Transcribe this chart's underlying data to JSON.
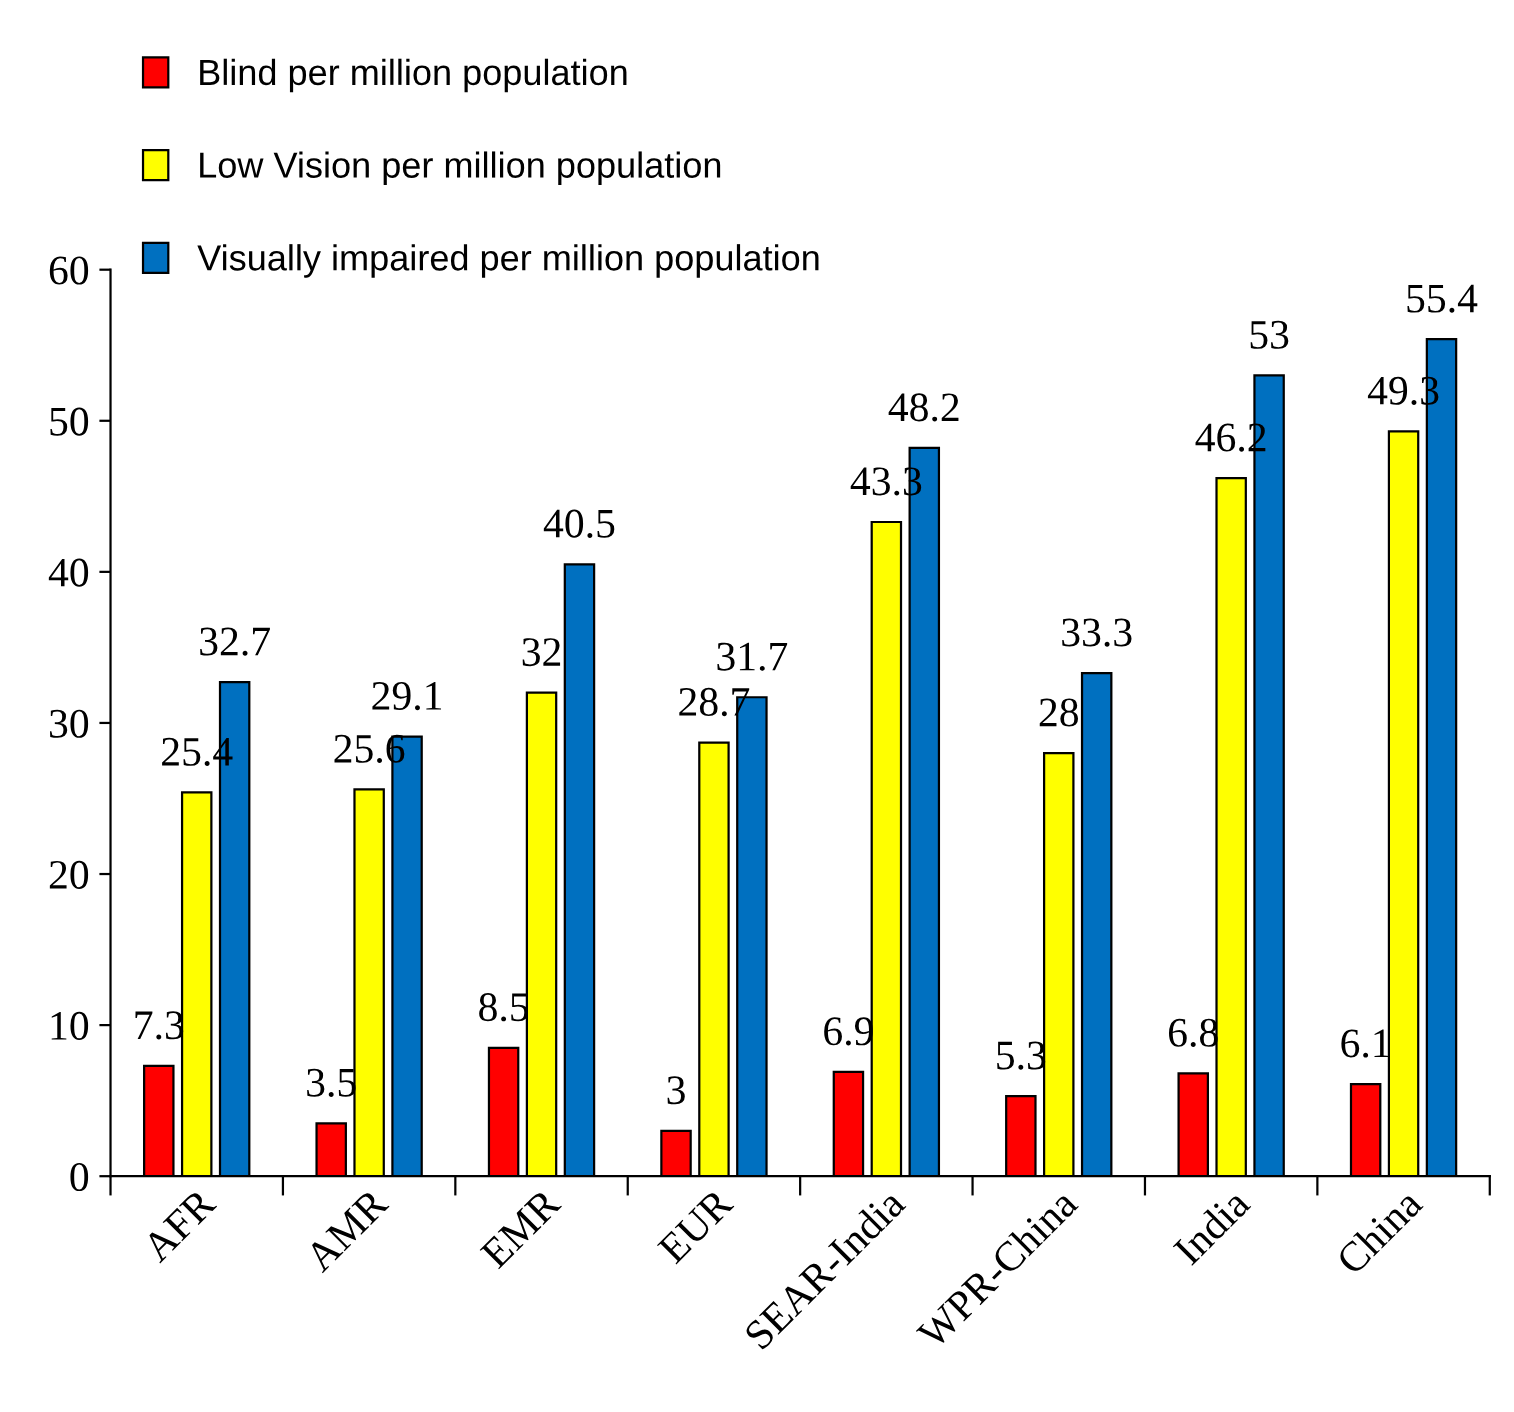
{
  "chart_data": {
    "type": "bar",
    "categories": [
      "AFR",
      "AMR",
      "EMR",
      "EUR",
      "SEAR-India",
      "WPR-China",
      "India",
      "China"
    ],
    "series": [
      {
        "name": "Blind per million population",
        "color": "#ff0000",
        "values": [
          7.3,
          3.5,
          8.5,
          3,
          6.9,
          5.3,
          6.8,
          6.1
        ]
      },
      {
        "name": "Low Vision per million population",
        "color": "#ffff00",
        "values": [
          25.4,
          25.6,
          32,
          28.7,
          43.3,
          28,
          46.2,
          49.3
        ]
      },
      {
        "name": "Visually impaired per million population",
        "color": "#0070c0",
        "values": [
          32.7,
          29.1,
          40.5,
          31.7,
          48.2,
          33.3,
          53,
          55.4
        ]
      }
    ],
    "ylim": [
      0,
      60
    ],
    "yticks": [
      0,
      10,
      20,
      30,
      40,
      50,
      60
    ],
    "data_labels": true,
    "grid": false,
    "legend": "top left"
  }
}
